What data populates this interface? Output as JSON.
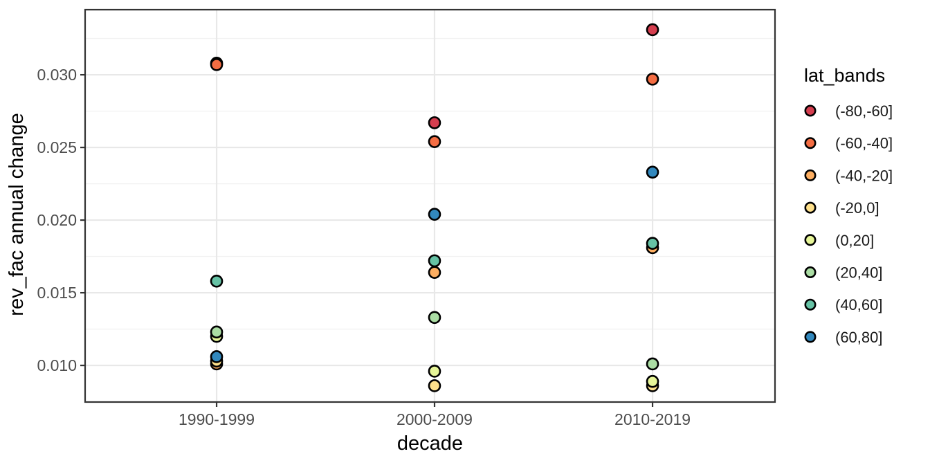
{
  "chart_data": {
    "type": "scatter",
    "title": "",
    "xlabel": "decade",
    "ylabel": "rev_fac annual change",
    "categories": [
      "1990-1999",
      "2000-2009",
      "2010-2019"
    ],
    "series": [
      {
        "name": "(-80,-60]",
        "color": "#D53E4F",
        "values": [
          0.0308,
          0.0267,
          0.0331
        ]
      },
      {
        "name": "(-60,-40]",
        "color": "#F46D43",
        "values": [
          0.0307,
          0.0254,
          0.0297
        ]
      },
      {
        "name": "(-40,-20]",
        "color": "#FDAE61",
        "values": [
          0.0101,
          0.0164,
          0.0181
        ]
      },
      {
        "name": "(-20,0]",
        "color": "#FEE08B",
        "values": [
          0.0103,
          0.0086,
          0.0086
        ]
      },
      {
        "name": "(0,20]",
        "color": "#E6F598",
        "values": [
          0.012,
          0.0096,
          0.0089
        ]
      },
      {
        "name": "(20,40]",
        "color": "#ABDDA4",
        "values": [
          0.0123,
          0.0133,
          0.0101
        ]
      },
      {
        "name": "(40,60]",
        "color": "#66C2A5",
        "values": [
          0.0158,
          0.0172,
          0.0184
        ]
      },
      {
        "name": "(60,80]",
        "color": "#3288BD",
        "values": [
          0.0106,
          0.0204,
          0.0233
        ]
      }
    ],
    "legend": {
      "title": "lat_bands",
      "position": "right"
    },
    "y_axis": {
      "tick_labels": [
        "0.030",
        "0.025",
        "0.020",
        "0.015",
        "0.010"
      ],
      "tick_values": [
        0.03,
        0.025,
        0.02,
        0.015,
        0.01
      ],
      "minor_tick_values": [
        0.0325,
        0.0275,
        0.0225,
        0.0175,
        0.0125
      ],
      "range": [
        0.00748,
        0.03448
      ]
    },
    "grid": true,
    "point_style": {
      "shape": "circle",
      "outline": "#000000"
    }
  },
  "theme": {
    "background": "#FFFFFF",
    "grid_major_color": "#E8E8E8",
    "grid_minor_color": "#F1F1F1",
    "panel_border_color": "#333333",
    "tick_label_color": "#4D4D4D",
    "text_color": "#000000",
    "legend_label_color": "#1A1A1A"
  }
}
